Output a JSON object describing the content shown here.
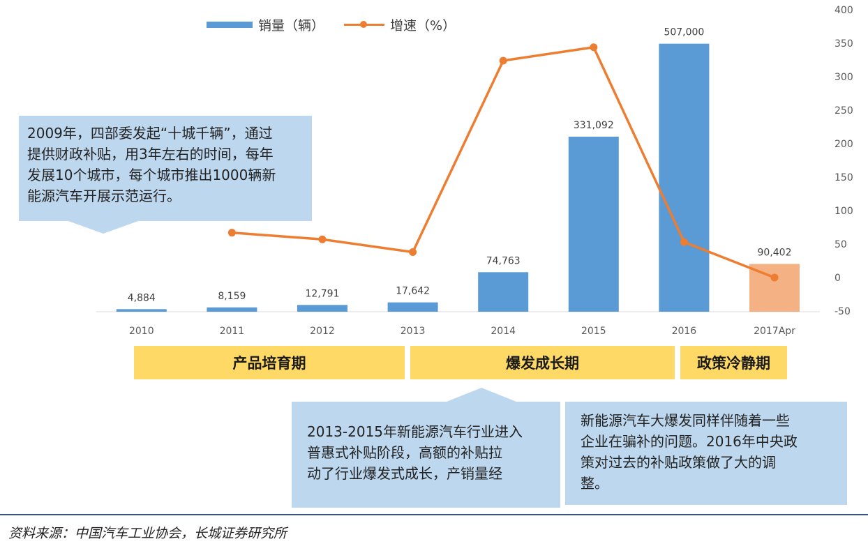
{
  "legend": {
    "bar_label": "销量（辆）",
    "line_label": "增速（%）"
  },
  "chart_data": {
    "type": "bar",
    "categories": [
      "2010",
      "2011",
      "2012",
      "2013",
      "2014",
      "2015",
      "2016",
      "2017Apr"
    ],
    "series": [
      {
        "name": "销量（辆）",
        "type": "bar",
        "values": [
          4884,
          8159,
          12791,
          17642,
          74763,
          331092,
          507000,
          90402
        ],
        "labels": [
          "4,884",
          "8,159",
          "12,791",
          "17,642",
          "74,763",
          "331,092",
          "507,000",
          "90,402"
        ],
        "colors": [
          "#5b9bd5",
          "#5b9bd5",
          "#5b9bd5",
          "#5b9bd5",
          "#5b9bd5",
          "#5b9bd5",
          "#5b9bd5",
          "#f4b183"
        ]
      },
      {
        "name": "增速（%）",
        "type": "line",
        "axis": "right",
        "values": [
          null,
          67,
          57,
          38,
          324,
          344,
          53,
          0
        ],
        "color": "#ed7d31"
      }
    ],
    "y2_ticks": [
      "400",
      "350",
      "300",
      "250",
      "200",
      "150",
      "100",
      "50",
      "0",
      "-50"
    ],
    "y2lim": [
      -50,
      400
    ],
    "ylim": [
      0,
      800000
    ],
    "grid": false,
    "legend_position": "top"
  },
  "phases": [
    "产品培育期",
    "爆发成长期",
    "政策冷静期"
  ],
  "callouts": {
    "c1": "2009年，四部委发起“十城千辆”，通过\n提供财政补贴，用3年左右的时间，每年\n发展10个城市，每个城市推出1000辆新\n能源汽车开展示范运行。",
    "c2": "2013-2015年新能源汽车行业进入\n普惠式补贴阶段，高额的补贴拉\n动了行业爆发式成长，产销量经",
    "c3": "新能源汽车大爆发同样伴随着一些\n企业在骗补的问题。2016年中央政\n策对过去的补贴政策做了大的调\n整。"
  },
  "source": "资料来源：中国汽车工业协会，长城证券研究所",
  "colors": {
    "bar": "#5b9bd5",
    "bar_highlight": "#f4b183",
    "line": "#ed7d31",
    "callout": "#bdd7ee",
    "phase": "#ffd966"
  }
}
